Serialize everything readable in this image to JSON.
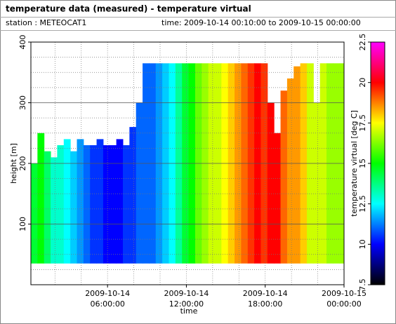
{
  "header": {
    "title": "temperature data (measured) - temperature virtual",
    "station": "station : METEOCAT1",
    "time": "time: 2009-10-14 00:10:00 to 2009-10-15 00:00:00"
  },
  "chart_data": {
    "type": "heatmap",
    "x_label": "time",
    "y_label": "height [m]",
    "colorbar_label": "temperature virtual [deg C]",
    "xlim": [
      "2009-10-14 00:10:00",
      "2009-10-15 00:00:00"
    ],
    "xticks": [
      {
        "value": "2009-10-14 06:00:00",
        "label": "2009-10-14\n06:00:00"
      },
      {
        "value": "2009-10-14 12:00:00",
        "label": "2009-10-14\n12:00:00"
      },
      {
        "value": "2009-10-14 18:00:00",
        "label": "2009-10-14\n18:00:00"
      },
      {
        "value": "2009-10-15 00:00:00",
        "label": "2009-10-15\n00:00:00"
      }
    ],
    "xminor": [
      "2009-10-14 02:00:00",
      "2009-10-14 04:00:00",
      "2009-10-14 08:00:00",
      "2009-10-14 10:00:00",
      "2009-10-14 14:00:00",
      "2009-10-14 16:00:00",
      "2009-10-14 20:00:00",
      "2009-10-14 22:00:00"
    ],
    "ylim": [
      0,
      400
    ],
    "yticks": [
      100,
      200,
      300,
      400
    ],
    "yminor": [
      25,
      50,
      75,
      125,
      150,
      175,
      225,
      250,
      275,
      325,
      350,
      375
    ],
    "clim": [
      7.5,
      22.5
    ],
    "cticks": [
      7.5,
      10,
      12.5,
      15,
      17.5,
      20,
      22.5
    ],
    "colormap": [
      "#000000",
      "#0000ff",
      "#00ffff",
      "#00ff00",
      "#ffff00",
      "#ff0000",
      "#ff00ff"
    ],
    "grid": true,
    "bin_minutes": 30,
    "bottom": 35,
    "x": [
      "2009-10-14 00:10:00",
      "2009-10-14 00:40:00",
      "2009-10-14 01:10:00",
      "2009-10-14 01:40:00",
      "2009-10-14 02:10:00",
      "2009-10-14 02:40:00",
      "2009-10-14 03:10:00",
      "2009-10-14 03:40:00",
      "2009-10-14 04:10:00",
      "2009-10-14 04:40:00",
      "2009-10-14 05:10:00",
      "2009-10-14 05:40:00",
      "2009-10-14 06:10:00",
      "2009-10-14 06:40:00",
      "2009-10-14 07:10:00",
      "2009-10-14 07:40:00",
      "2009-10-14 08:10:00",
      "2009-10-14 08:40:00",
      "2009-10-14 09:10:00",
      "2009-10-14 09:40:00",
      "2009-10-14 10:10:00",
      "2009-10-14 10:40:00",
      "2009-10-14 11:10:00",
      "2009-10-14 11:40:00",
      "2009-10-14 12:10:00",
      "2009-10-14 12:40:00",
      "2009-10-14 13:10:00",
      "2009-10-14 13:40:00",
      "2009-10-14 14:10:00",
      "2009-10-14 14:40:00",
      "2009-10-14 15:10:00",
      "2009-10-14 15:40:00",
      "2009-10-14 16:10:00",
      "2009-10-14 16:40:00",
      "2009-10-14 17:10:00",
      "2009-10-14 17:40:00",
      "2009-10-14 18:10:00",
      "2009-10-14 18:40:00",
      "2009-10-14 19:10:00",
      "2009-10-14 19:40:00",
      "2009-10-14 20:10:00",
      "2009-10-14 20:40:00",
      "2009-10-14 21:10:00",
      "2009-10-14 21:40:00",
      "2009-10-14 22:10:00",
      "2009-10-14 22:40:00",
      "2009-10-14 23:10:00",
      "2009-10-14 23:40:00"
    ],
    "values": [
      14.5,
      15,
      14,
      13,
      13,
      12.5,
      12,
      11.5,
      11,
      10.5,
      10.5,
      10,
      10,
      10,
      10.5,
      10.5,
      11,
      11,
      11,
      11.5,
      12,
      12.5,
      13.5,
      14.5,
      15,
      16,
      16.5,
      17,
      17,
      17.5,
      18,
      18.5,
      19,
      19.5,
      20,
      19.5,
      20,
      20,
      19,
      18.5,
      18.5,
      18,
      17,
      17,
      17,
      16.5,
      16.5,
      16.5
    ],
    "tops": [
      200,
      250,
      220,
      210,
      230,
      240,
      220,
      240,
      230,
      230,
      240,
      230,
      230,
      240,
      230,
      260,
      300,
      365,
      365,
      365,
      365,
      365,
      365,
      365,
      365,
      365,
      365,
      365,
      365,
      365,
      365,
      365,
      365,
      365,
      365,
      365,
      300,
      250,
      320,
      340,
      360,
      365,
      365,
      300,
      365,
      365,
      365,
      365
    ]
  }
}
